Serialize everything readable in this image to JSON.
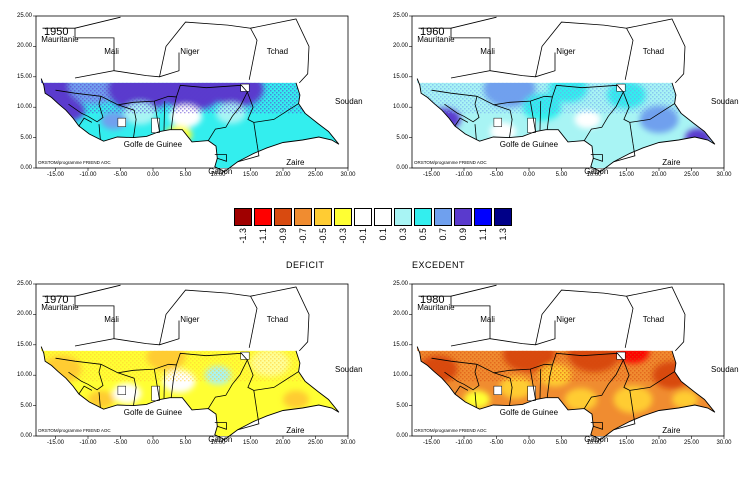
{
  "panels": [
    {
      "year": "1950",
      "theme": "excedent",
      "ylabels": [
        "25.00",
        "20.00",
        "15.00",
        "10.00",
        "5.00",
        "0.00"
      ],
      "xlabels": [
        "-15.00",
        "-10.00",
        "-5.00",
        "0.00",
        "5.00",
        "10.00",
        "15.00",
        "20.00",
        "25.00",
        "30.00"
      ]
    },
    {
      "year": "1960",
      "theme": "mixed",
      "ylabels": [
        "25.00",
        "20.00",
        "15.00",
        "10.00",
        "5.00",
        "0.00"
      ],
      "xlabels": [
        "-15.00",
        "-10.00",
        "-5.00",
        "0.00",
        "5.00",
        "10.00",
        "15.00",
        "20.00",
        "25.00",
        "30.00"
      ]
    },
    {
      "year": "1970",
      "theme": "mild_deficit",
      "ylabels": [
        "25.00",
        "20.00",
        "15.00",
        "10.00",
        "5.00",
        "0.00"
      ],
      "xlabels": [
        "-15.00",
        "-10.00",
        "-5.00",
        "0.00",
        "5.00",
        "10.00",
        "15.00",
        "20.00",
        "25.00",
        "30.00"
      ]
    },
    {
      "year": "1980",
      "theme": "deficit",
      "ylabels": [
        "25.00",
        "20.00",
        "15.00",
        "10.00",
        "5.00",
        "0.00"
      ],
      "xlabels": [
        "-15.00",
        "-10.00",
        "-5.00",
        "0.00",
        "5.00",
        "10.00",
        "15.00",
        "20.00",
        "25.00",
        "30.00"
      ]
    }
  ],
  "regions": {
    "mauritanie": "Mauritanie",
    "mali": "Mali",
    "niger": "Niger",
    "tchad": "Tchad",
    "soudan": "Soudan",
    "golfe": "Golfe de Guinee",
    "gabon": "Gabon",
    "zaire": "Zaire"
  },
  "credit": "ORSTOM/programme FRIEND AOC",
  "legend": {
    "deficit_label": "DEFICIT",
    "excedent_label": "EXCEDENT",
    "classes": [
      {
        "label": "-1.3",
        "color": "#a00000"
      },
      {
        "label": "-1.1",
        "color": "#ff0000"
      },
      {
        "label": "-0.9",
        "color": "#d84a10"
      },
      {
        "label": "-0.7",
        "color": "#f08c30"
      },
      {
        "label": "-0.5",
        "color": "#ffcc33"
      },
      {
        "label": "-0.3",
        "color": "#ffff33"
      },
      {
        "label": "-0.1",
        "color": "#ffffff"
      },
      {
        "label": "0.1",
        "color": "#ffffff"
      },
      {
        "label": "0.3",
        "color": "#a8f4f4"
      },
      {
        "label": "0.5",
        "color": "#33eeee"
      },
      {
        "label": "0.7",
        "color": "#6fa0ee"
      },
      {
        "label": "0.9",
        "color": "#5a3acd"
      },
      {
        "label": "1.1",
        "color": "#0000ff"
      },
      {
        "label": "1.3",
        "color": "#000088"
      }
    ]
  }
}
